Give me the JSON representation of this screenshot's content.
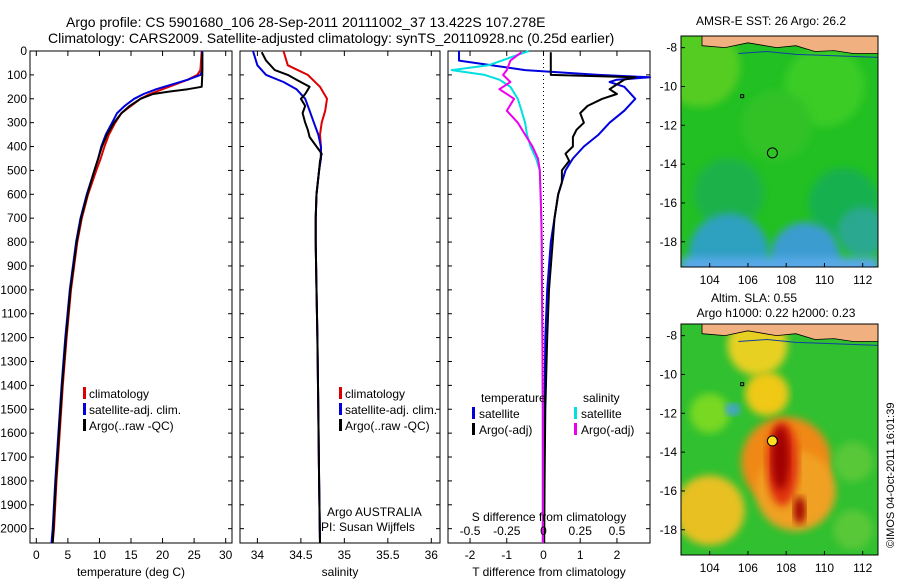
{
  "header": {
    "line1": "Argo profile: CS 5901680_106 28-Sep-2011 20111002_37 13.422S 107.278E",
    "line2": "Climatology: CARS2009. Satellite-adjusted climatology: synTS_20110928.nc (0.25d earlier)"
  },
  "credit": "©IMOS 04-Oct-2011 16:01:39",
  "colors": {
    "climatology": "#dd0000",
    "satellite": "#0000dd",
    "argo": "#000000",
    "sal_sat": "#00e0e0",
    "sal_argo": "#ee00ee",
    "land": "#f0b080"
  },
  "chart_data": [
    {
      "id": "temperature",
      "type": "line",
      "xlabel": "temperature (deg C)",
      "ylabel": "",
      "xlim": [
        -1,
        31
      ],
      "ylim": [
        2060,
        0
      ],
      "xticks": [
        0,
        5,
        10,
        15,
        20,
        25,
        30
      ],
      "yticks": [
        0,
        100,
        200,
        300,
        400,
        500,
        600,
        700,
        800,
        900,
        1000,
        1100,
        1200,
        1300,
        1400,
        1500,
        1600,
        1700,
        1800,
        1900,
        2000
      ],
      "legend": [
        "climatology",
        "satellite-adj. clim.",
        "Argo(..raw -QC)"
      ],
      "series": [
        {
          "name": "climatology",
          "color": "#dd0000",
          "y": [
            0,
            80,
            100,
            120,
            140,
            160,
            180,
            200,
            230,
            260,
            300,
            350,
            400,
            450,
            500,
            600,
            700,
            800,
            1000,
            1200,
            1400,
            1600,
            1800,
            2000,
            2060
          ],
          "x": [
            26.2,
            26,
            25.5,
            24,
            22,
            20,
            18,
            16.5,
            15,
            13.5,
            12.5,
            11.5,
            10.8,
            10.2,
            9.5,
            8.2,
            7.2,
            6.5,
            5.5,
            4.8,
            4.2,
            3.7,
            3.2,
            2.8,
            2.6
          ]
        },
        {
          "name": "satellite-adj. clim.",
          "color": "#0000dd",
          "y": [
            0,
            80,
            100,
            120,
            140,
            160,
            180,
            200,
            230,
            260,
            300,
            350,
            400,
            450,
            500,
            600,
            700,
            800,
            1000,
            1200,
            1400,
            1600,
            1800,
            2000,
            2060
          ],
          "x": [
            26.3,
            26.3,
            26,
            24,
            21.5,
            19,
            17,
            15.5,
            14,
            12.8,
            12,
            11,
            10.3,
            9.8,
            9.2,
            8,
            7,
            6.3,
            5.3,
            4.6,
            4,
            3.5,
            3,
            2.6,
            2.4
          ]
        },
        {
          "name": "Argo(..raw -QC)",
          "color": "#000000",
          "y": [
            5,
            50,
            100,
            150,
            160,
            170,
            180,
            200,
            230,
            260,
            300,
            350,
            400,
            450,
            500,
            600,
            700,
            800,
            1000,
            1200,
            1400,
            1600,
            1800,
            2000,
            2060
          ],
          "x": [
            26.3,
            26.3,
            26.3,
            26.2,
            24,
            21,
            18.5,
            16.5,
            14.8,
            13.5,
            12.3,
            11.2,
            10.4,
            9.8,
            9.2,
            8.1,
            7.1,
            6.4,
            5.4,
            4.7,
            4.1,
            3.6,
            3.1,
            2.7,
            2.6
          ]
        }
      ]
    },
    {
      "id": "salinity",
      "type": "line",
      "xlabel": "salinity",
      "ylabel": "",
      "xlim": [
        33.8,
        36.1
      ],
      "ylim": [
        2060,
        0
      ],
      "xticks": [
        34,
        34.5,
        35,
        35.5,
        36
      ],
      "xticklabels": [
        "34",
        "34.5",
        "35",
        "35.5",
        "36"
      ],
      "legend": [
        "climatology",
        "satellite-adj. clim.",
        "Argo(..raw -QC)"
      ],
      "annotation": [
        "Argo AUSTRALIA",
        "PI: Susan Wijffels"
      ],
      "series": [
        {
          "name": "climatology",
          "color": "#dd0000",
          "y": [
            0,
            60,
            100,
            150,
            200,
            250,
            300,
            350,
            400,
            450,
            500,
            600,
            700,
            800,
            1000,
            1200,
            1500,
            1800,
            2060
          ],
          "x": [
            34.3,
            34.35,
            34.58,
            34.72,
            34.8,
            34.78,
            34.74,
            34.72,
            34.73,
            34.73,
            34.71,
            34.68,
            34.67,
            34.67,
            34.68,
            34.69,
            34.7,
            34.71,
            34.72
          ]
        },
        {
          "name": "satellite-adj. clim.",
          "color": "#0000dd",
          "y": [
            0,
            60,
            100,
            130,
            160,
            200,
            250,
            300,
            350,
            400,
            450,
            500,
            600,
            700,
            800,
            1000,
            1200,
            1500,
            1800,
            2060
          ],
          "x": [
            33.95,
            34.0,
            34.1,
            34.3,
            34.45,
            34.55,
            34.6,
            34.65,
            34.7,
            34.73,
            34.73,
            34.71,
            34.68,
            34.67,
            34.67,
            34.68,
            34.69,
            34.7,
            34.71,
            34.72
          ]
        },
        {
          "name": "Argo(..raw -QC)",
          "color": "#000000",
          "y": [
            5,
            40,
            80,
            100,
            120,
            150,
            180,
            200,
            230,
            260,
            300,
            330,
            360,
            400,
            430,
            460,
            500,
            600,
            700,
            800,
            1000,
            1200,
            1500,
            1800,
            2060
          ],
          "x": [
            34.05,
            34.1,
            34.2,
            34.35,
            34.45,
            34.6,
            34.55,
            34.5,
            34.55,
            34.52,
            34.55,
            34.58,
            34.6,
            34.68,
            34.74,
            34.72,
            34.71,
            34.68,
            34.67,
            34.67,
            34.68,
            34.69,
            34.7,
            34.71,
            34.72
          ]
        }
      ]
    },
    {
      "id": "difference",
      "type": "line",
      "xlabel": "T difference from climatology",
      "x2label": "S difference from climatology",
      "ylabel": "",
      "xlim": [
        -2.6,
        2.9
      ],
      "ylim": [
        2060,
        0
      ],
      "xticks": [
        -2,
        -1,
        0,
        1,
        2
      ],
      "x2ticks": [
        -0.5,
        -0.25,
        0,
        0.25,
        0.5
      ],
      "x2tick_positions": [
        -2,
        -1,
        0,
        1,
        2
      ],
      "legend_left_title": "temperature",
      "legend_right_title": "salinity",
      "legend": [
        "satellite",
        "Argo(-adj)",
        "satellite",
        "Argo(-adj)"
      ],
      "series": [
        {
          "name": "satellite",
          "color": "#0000dd",
          "y": [
            0,
            40,
            80,
            100,
            110,
            120,
            130,
            150,
            200,
            250,
            300,
            350,
            400,
            450,
            500,
            600,
            700,
            800,
            1000,
            1200,
            1500,
            1800,
            2060
          ],
          "x": [
            -2.3,
            -2.3,
            -0.5,
            1.5,
            2.9,
            2.0,
            1.8,
            2.2,
            2.5,
            2.2,
            1.8,
            1.5,
            1.1,
            0.8,
            0.6,
            0.4,
            0.3,
            0.2,
            0.1,
            0.05,
            0.03,
            0.02,
            0.01
          ]
        },
        {
          "name": "Argo(-adj)",
          "color": "#000000",
          "y": [
            5,
            100,
            110,
            120,
            140,
            160,
            180,
            200,
            230,
            260,
            300,
            330,
            360,
            400,
            430,
            460,
            500,
            550,
            600,
            700,
            800,
            1000,
            1200,
            1500,
            1800,
            2060
          ],
          "x": [
            0.2,
            0.2,
            2.5,
            2.2,
            2.0,
            1.8,
            2.0,
            1.6,
            1.2,
            1.0,
            1.1,
            0.9,
            0.8,
            0.8,
            0.6,
            0.7,
            0.5,
            0.5,
            0.4,
            0.3,
            0.25,
            0.15,
            0.1,
            0.05,
            0.03,
            0.02
          ]
        },
        {
          "name": "satellite",
          "color": "#00e0e0",
          "y": [
            0,
            60,
            80,
            100,
            120,
            150,
            200,
            250,
            300,
            350,
            400,
            450,
            500,
            600,
            700,
            800,
            1000,
            1200,
            1500,
            1800,
            2060
          ],
          "x": [
            -0.4,
            -1.5,
            -2.5,
            -1.6,
            -1.2,
            -0.9,
            -0.7,
            -0.6,
            -0.5,
            -0.45,
            -0.35,
            -0.2,
            -0.1,
            -0.08,
            -0.06,
            -0.05,
            -0.04,
            -0.03,
            -0.02,
            -0.02,
            -0.02
          ]
        },
        {
          "name": "Argo(-adj)",
          "color": "#ee00ee",
          "y": [
            5,
            40,
            80,
            100,
            130,
            160,
            200,
            250,
            300,
            350,
            400,
            450,
            500,
            600,
            700,
            800,
            1000,
            1200,
            1500,
            1800,
            2060
          ],
          "x": [
            -0.6,
            -0.9,
            -1.0,
            -1.1,
            -0.9,
            -1.2,
            -0.8,
            -1.0,
            -0.7,
            -0.5,
            -0.3,
            -0.15,
            -0.1,
            -0.08,
            -0.06,
            -0.05,
            -0.04,
            -0.03,
            -0.02,
            -0.02,
            -0.02
          ]
        }
      ]
    },
    {
      "id": "sst-map",
      "type": "heatmap",
      "title": "AMSR-E SST: 26 Argo: 26.2",
      "xlim": [
        102.5,
        112.8
      ],
      "ylim": [
        -19.3,
        -7.4
      ],
      "xticks": [
        104,
        106,
        108,
        110,
        112
      ],
      "yticks": [
        -8,
        -10,
        -12,
        -14,
        -16,
        -18
      ],
      "argo_position": [
        107.278,
        -13.422
      ],
      "marker": "open circle"
    },
    {
      "id": "sla-map",
      "type": "heatmap",
      "title": "Altim. SLA: 0.55",
      "subtitle": "Argo h1000: 0.22 h2000: 0.23",
      "xlim": [
        102.5,
        112.8
      ],
      "ylim": [
        -19.3,
        -7.4
      ],
      "xticks": [
        104,
        106,
        108,
        110,
        112
      ],
      "yticks": [
        -8,
        -10,
        -12,
        -14,
        -16,
        -18
      ],
      "argo_position": [
        107.278,
        -13.422
      ],
      "marker": "filled yellow circle"
    }
  ]
}
